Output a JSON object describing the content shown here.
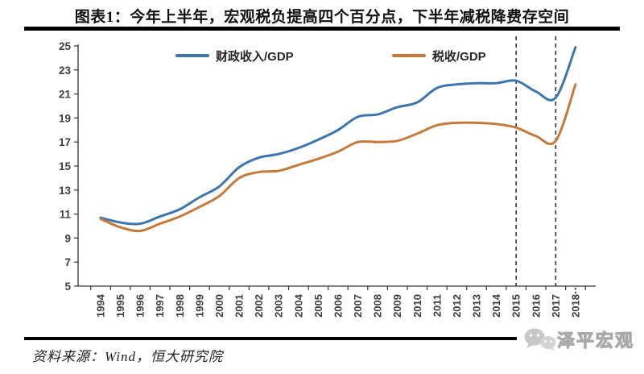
{
  "title": "图表1：今年上半年，宏观税负提高四个百分点，下半年减税降费存空间",
  "source_note": "资料来源：Wind，恒大研究院",
  "logo": {
    "text": "泽平宏观",
    "icon": "wechat-bubbles-icon",
    "color": "#c9c9c9"
  },
  "colors": {
    "fiscal_line": "#3D76AC",
    "tax_line": "#C5793B",
    "dashed_line": "#333333",
    "axis": "#333333",
    "tick_label": "#3f3f3f",
    "rule": "#000000"
  },
  "chart_data": {
    "type": "line",
    "title": "图表1：今年上半年，宏观税负提高四个百分点，下半年减税降费存空间",
    "x": [
      1994,
      1995,
      1996,
      1997,
      1998,
      1999,
      2000,
      2001,
      2002,
      2003,
      2004,
      2005,
      2006,
      2007,
      2008,
      2009,
      2010,
      2011,
      2012,
      2013,
      2014,
      2015,
      2016,
      2017,
      2018
    ],
    "series": [
      {
        "name": "财政收入/GDP",
        "color": "#3D76AC",
        "values": [
          10.7,
          10.3,
          10.2,
          10.8,
          11.4,
          12.4,
          13.3,
          14.9,
          15.7,
          16.0,
          16.5,
          17.2,
          18.0,
          19.1,
          19.3,
          19.9,
          20.3,
          21.5,
          21.8,
          21.9,
          21.9,
          22.1,
          21.2,
          20.7,
          24.9
        ]
      },
      {
        "name": "税收/GDP",
        "color": "#C5793B",
        "values": [
          10.6,
          9.9,
          9.6,
          10.2,
          10.8,
          11.6,
          12.5,
          14.0,
          14.5,
          14.6,
          15.1,
          15.6,
          16.2,
          17.0,
          17.0,
          17.1,
          17.7,
          18.4,
          18.6,
          18.6,
          18.5,
          18.2,
          17.5,
          17.1,
          21.8
        ]
      }
    ],
    "xlabel": "",
    "ylabel": "",
    "ylim": [
      5,
      25
    ],
    "yticks": [
      5,
      7,
      9,
      11,
      13,
      15,
      17,
      19,
      21,
      23,
      25
    ],
    "dashed_vlines_x": [
      2015,
      2017
    ],
    "partial_dashed_tick_x": 2018,
    "legend_position": "top-inside",
    "grid": false
  }
}
